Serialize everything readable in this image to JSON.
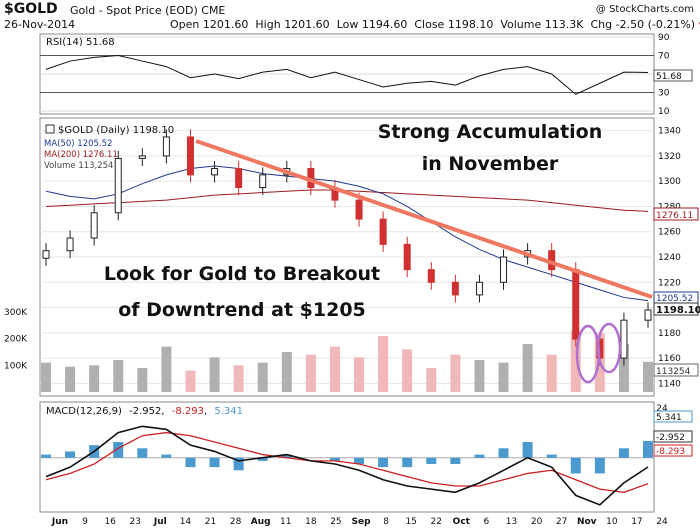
{
  "header": {
    "symbol": "$GOLD",
    "name": "Gold - Spot Price (EOD)",
    "exchange": "CME",
    "date": "26-Nov-2014",
    "open_label": "Open",
    "open": "1201.60",
    "high_label": "High",
    "high": "1201.60",
    "low_label": "Low",
    "low": "1194.60",
    "close_label": "Close",
    "close": "1198.10",
    "volume_label": "Volume",
    "volume": "113.3K",
    "chg_label": "Chg",
    "chg": "-2.50 (-0.21%)",
    "credit": "@ StockCharts.com"
  },
  "colors": {
    "up": "#222222",
    "down": "#d03030",
    "ma50": "#1f3a93",
    "ma200": "#9b1c1c",
    "trendline": "#f07860",
    "volume_up": "#b0b0b0",
    "volume_down": "#f0b8b8",
    "annotation_text": "#111111",
    "highlight_ellipse": "#b070d0",
    "histogram": "#4a9ad0",
    "macd_line": "#111111",
    "signal_line": "#cc2020"
  },
  "chart_data": [
    {
      "type": "line",
      "panel": "rsi",
      "series": [
        {
          "name": "RSI(14)",
          "last_value": "51.68",
          "x": [
            "Jun 2",
            "Jun 9",
            "Jun 16",
            "Jun 23",
            "Jun 30",
            "Jul 7",
            "Jul 14",
            "Jul 21",
            "Jul 28",
            "Aug 4",
            "Aug 11",
            "Aug 18",
            "Aug 25",
            "Sep 1",
            "Sep 8",
            "Sep 15",
            "Sep 22",
            "Sep 29",
            "Oct 6",
            "Oct 13",
            "Oct 20",
            "Oct 27",
            "Nov 3",
            "Nov 10",
            "Nov 17",
            "Nov 24"
          ],
          "values": [
            55,
            64,
            68,
            70,
            64,
            58,
            46,
            50,
            45,
            52,
            55,
            46,
            52,
            44,
            36,
            40,
            42,
            38,
            48,
            55,
            58,
            50,
            28,
            40,
            52,
            51.68
          ]
        }
      ],
      "yticks": [
        10,
        30,
        50,
        70,
        90
      ],
      "ylim": [
        10,
        90
      ]
    },
    {
      "type": "bar",
      "panel": "price",
      "title": "$GOLD (Daily) 1198.10",
      "legend": [
        {
          "label": "$GOLD (Daily) 1198.10"
        },
        {
          "label": "MA(50) 1205.52"
        },
        {
          "label": "MA(200) 1276.11"
        },
        {
          "label": "Volume 113,254"
        }
      ],
      "x": [
        "Jun 2",
        "Jun 9",
        "Jun 16",
        "Jun 23",
        "Jun 30",
        "Jul 7",
        "Jul 14",
        "Jul 21",
        "Jul 28",
        "Aug 4",
        "Aug 11",
        "Aug 18",
        "Aug 25",
        "Sep 1",
        "Sep 8",
        "Sep 15",
        "Sep 22",
        "Sep 29",
        "Oct 6",
        "Oct 13",
        "Oct 20",
        "Oct 27",
        "Nov 3",
        "Nov 10",
        "Nov 17",
        "Nov 24"
      ],
      "close": [
        1245,
        1255,
        1275,
        1318,
        1320,
        1335,
        1305,
        1310,
        1295,
        1305,
        1310,
        1295,
        1285,
        1270,
        1250,
        1230,
        1220,
        1210,
        1220,
        1240,
        1245,
        1230,
        1175,
        1160,
        1190,
        1198.1
      ],
      "ma50": [
        1292,
        1288,
        1286,
        1290,
        1298,
        1305,
        1310,
        1312,
        1310,
        1306,
        1304,
        1302,
        1300,
        1296,
        1290,
        1280,
        1268,
        1256,
        1246,
        1238,
        1232,
        1226,
        1220,
        1214,
        1208,
        1205.52
      ],
      "ma200": [
        1280,
        1281,
        1282,
        1283,
        1284,
        1285,
        1287,
        1289,
        1290,
        1291,
        1292,
        1293,
        1293,
        1292,
        1291,
        1290,
        1289,
        1288,
        1287,
        1286,
        1285,
        1283,
        1281,
        1279,
        1277,
        1276.11
      ],
      "volume_k": [
        110,
        95,
        100,
        120,
        90,
        170,
        80,
        130,
        100,
        110,
        150,
        140,
        170,
        130,
        210,
        160,
        90,
        140,
        120,
        110,
        180,
        140,
        230,
        220,
        180,
        113.254
      ],
      "volume_yticks": [
        "100K",
        "200K",
        "300K"
      ],
      "yticks": [
        1140,
        1160,
        1180,
        1200,
        1220,
        1240,
        1260,
        1280,
        1300,
        1320,
        1340
      ],
      "ylim": [
        1130,
        1350
      ],
      "value_labels": [
        "1205.52",
        "1198.10",
        "1276.11",
        "113254"
      ],
      "annotations": [
        "Strong Accumulation",
        "in November",
        "Look for Gold to Breakout",
        "of Downtrend at $1205"
      ]
    },
    {
      "type": "line",
      "panel": "macd",
      "title": "MACD(12,26,9) -2.952, -8.293, 5.341",
      "series": [
        {
          "name": "MACD(12,26,9)",
          "last_value": "-2.952",
          "values": [
            -6,
            -3,
            2,
            8,
            10,
            9,
            4,
            2,
            -1,
            0,
            1,
            -1,
            -2,
            -4,
            -7,
            -9,
            -10,
            -11,
            -8,
            -4,
            0,
            -3,
            -12,
            -15,
            -8,
            -2.952
          ]
        },
        {
          "name": "Signal",
          "last_value": "-8.293",
          "values": [
            -7,
            -5,
            -2,
            3,
            7,
            8,
            7,
            5,
            3,
            1,
            0,
            -1,
            -1,
            -2,
            -4,
            -6,
            -8,
            -9,
            -9,
            -7,
            -5,
            -4,
            -7,
            -10,
            -11,
            -8.293
          ]
        },
        {
          "name": "Histogram",
          "last_value": "5.341",
          "values": [
            1,
            2,
            4,
            5,
            3,
            1,
            -3,
            -3,
            -4,
            -1,
            1,
            0,
            -1,
            -2,
            -3,
            -3,
            -2,
            -2,
            1,
            3,
            5,
            1,
            -5,
            -5,
            3,
            5.341
          ]
        }
      ]
    }
  ],
  "x_labels": {
    "price": [
      "Jun",
      "9",
      "16",
      "23",
      "Jul 7",
      "14",
      "21",
      "28",
      "Aug",
      "11",
      "18",
      "25",
      "Sep",
      "8",
      "15",
      "22",
      "Oct",
      "6",
      "13",
      "20",
      "27",
      "Nov",
      "10",
      "17",
      "24"
    ],
    "macd": [
      "Jun",
      "9",
      "16",
      "23",
      "Jul",
      "14",
      "21",
      "28",
      "Aug",
      "11",
      "18",
      "25",
      "Sep",
      "8",
      "15",
      "22",
      "Oct",
      "6",
      "13",
      "20",
      "27",
      "Nov",
      "10",
      "17",
      "24"
    ]
  },
  "texts": {
    "rsi_title": "RSI(14) 51.68",
    "rsi_last": "51.68",
    "price_title": "$GOLD (Daily) 1198.10",
    "ma50_label": "MA(50) 1205.52",
    "ma200_label": "MA(200) 1276.11",
    "volume_label": "Volume 113,254",
    "ma50_value": "1205.52",
    "close_value": "1198.10",
    "ma200_value": "1276.11",
    "volume_value": "113254",
    "macd_title_prefix": "MACD(12,26,9)",
    "macd_v1": "-2.952",
    "macd_v2": "-8.293",
    "macd_v3": "5.341"
  }
}
